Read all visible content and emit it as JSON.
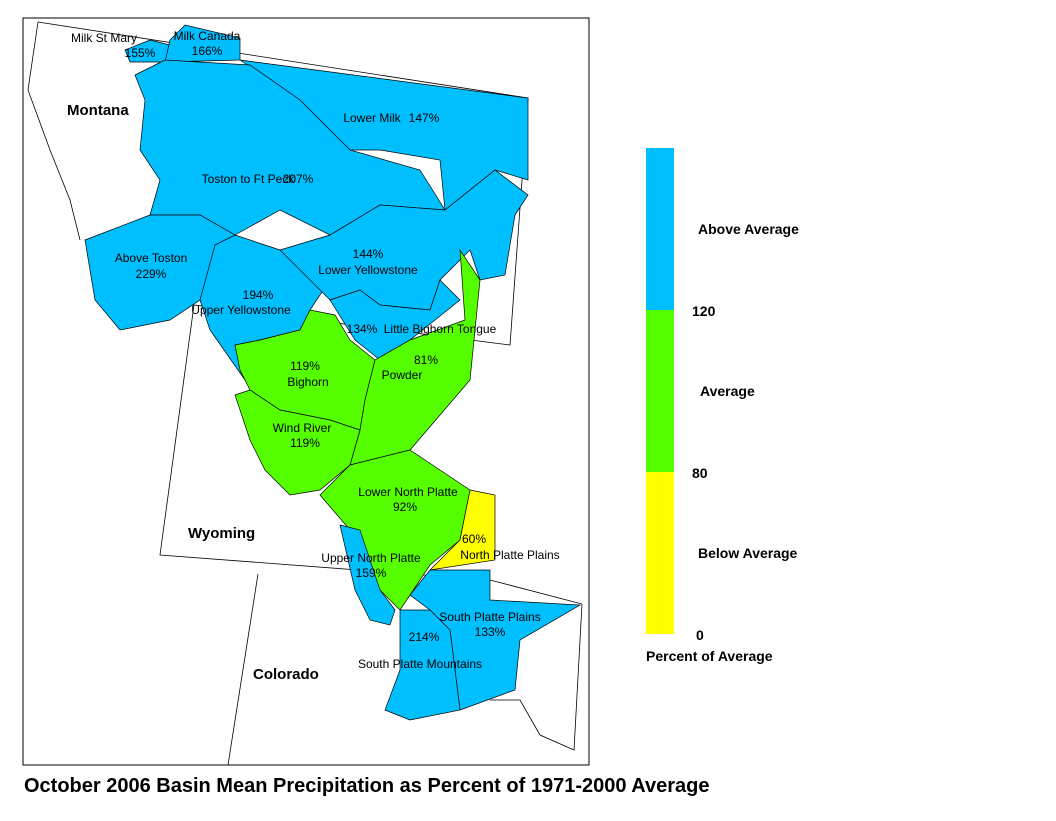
{
  "title": "October 2006 Basin Mean Precipitation as Percent of 1971-2000 Average",
  "states": [
    "Montana",
    "Wyoming",
    "Colorado"
  ],
  "basins": [
    {
      "name": "Milk St Mary",
      "percent": "155%",
      "color": "#00bfff"
    },
    {
      "name": "Milk Canada",
      "percent": "166%",
      "color": "#00bfff"
    },
    {
      "name": "Lower Milk",
      "percent": "147%",
      "color": "#00bfff"
    },
    {
      "name": "Toston to Ft Peck",
      "percent": "207%",
      "color": "#00bfff"
    },
    {
      "name": "Above Toston",
      "percent": "229%",
      "color": "#00bfff"
    },
    {
      "name": "Upper Yellowstone",
      "percent": "194%",
      "color": "#00bfff"
    },
    {
      "name": "Lower Yellowstone",
      "percent": "144%",
      "color": "#00bfff"
    },
    {
      "name": "Little Bighorn Tongue",
      "percent": "134%",
      "color": "#00bfff"
    },
    {
      "name": "Bighorn",
      "percent": "119%",
      "color": "#55ff00"
    },
    {
      "name": "Powder",
      "percent": "81%",
      "color": "#55ff00"
    },
    {
      "name": "Wind River",
      "percent": "119%",
      "color": "#55ff00"
    },
    {
      "name": "Lower North Platte",
      "percent": "92%",
      "color": "#55ff00"
    },
    {
      "name": "North Platte Plains",
      "percent": "60%",
      "color": "#ffff00"
    },
    {
      "name": "Upper North Platte",
      "percent": "159%",
      "color": "#00bfff"
    },
    {
      "name": "South Platte Plains",
      "percent": "133%",
      "color": "#00bfff"
    },
    {
      "name": "South Platte Mountains",
      "percent": "214%",
      "color": "#00bfff"
    }
  ],
  "legend": {
    "title": "Percent of Average",
    "classes": [
      {
        "label": "Above Average",
        "color": "#00bfff"
      },
      {
        "label": "Average",
        "color": "#55ff00"
      },
      {
        "label": "Below Average",
        "color": "#ffff00"
      }
    ],
    "ticks": [
      120,
      80,
      0
    ]
  }
}
